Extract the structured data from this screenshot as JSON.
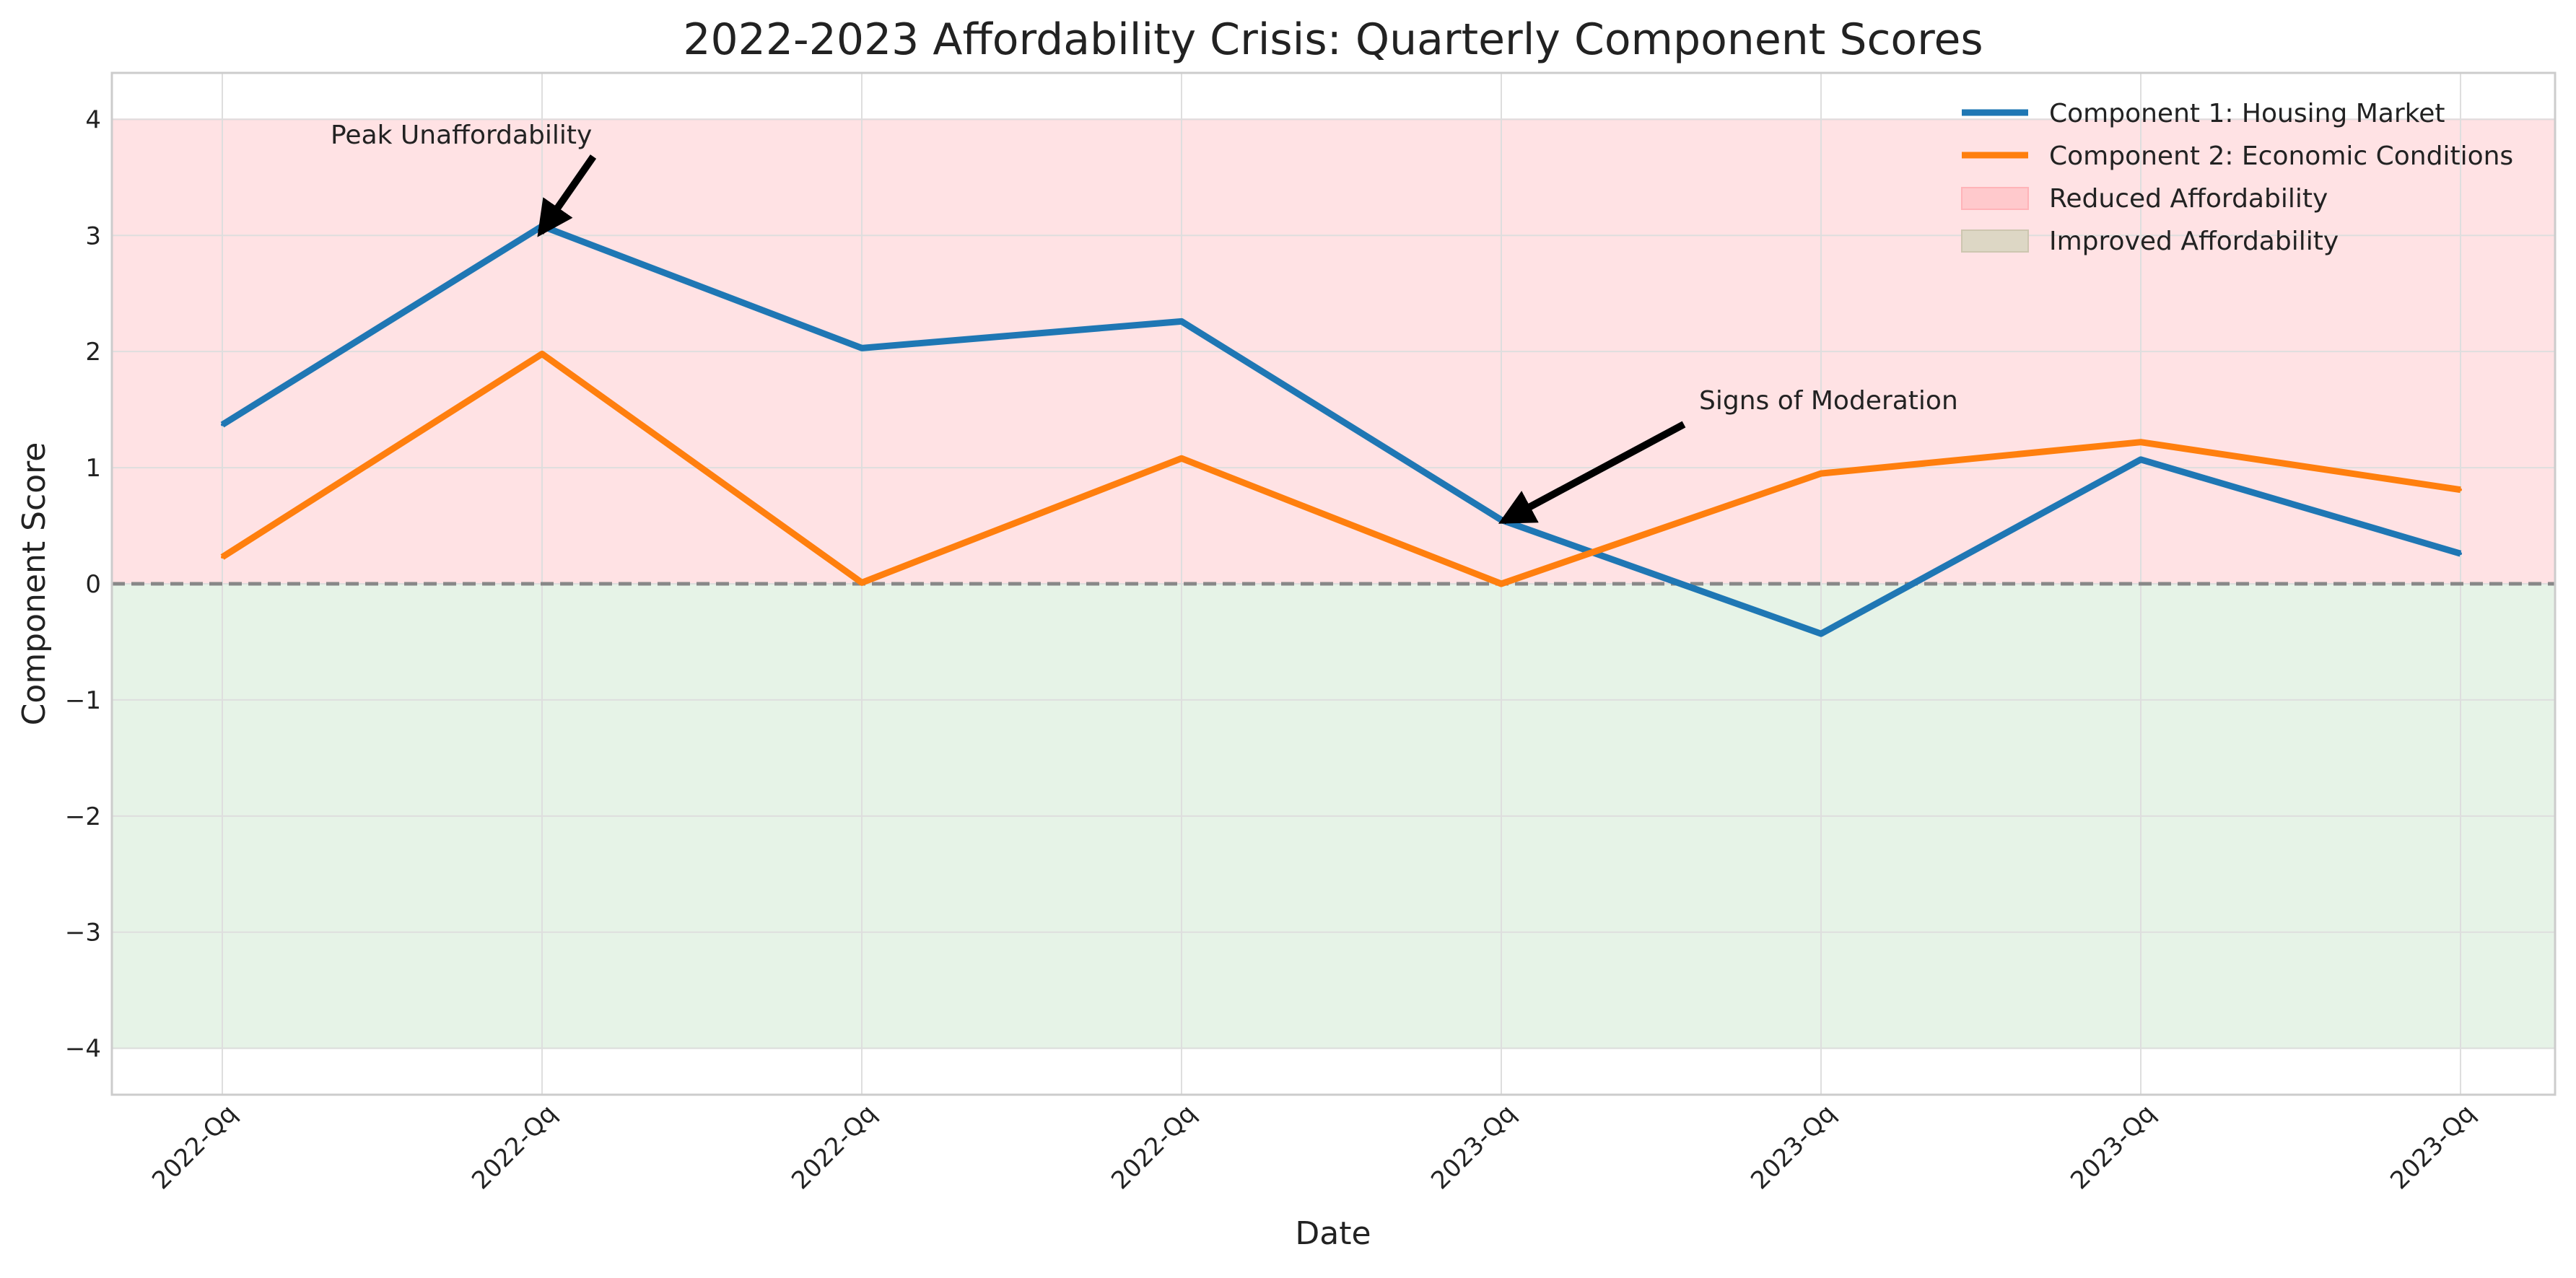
{
  "chart_data": {
    "type": "line",
    "title": "2022-2023 Affordability Crisis: Quarterly Component Scores",
    "xlabel": "Date",
    "ylabel": "Component Score",
    "categories": [
      "2022-Qq",
      "2022-Qq",
      "2022-Qq",
      "2022-Qq",
      "2023-Qq",
      "2023-Qq",
      "2023-Qq",
      "2023-Qq"
    ],
    "ylim": [
      -4.4,
      4.4
    ],
    "yticks": [
      4,
      3,
      2,
      1,
      0,
      -1,
      -2,
      -3,
      -4
    ],
    "ytick_labels": [
      "4",
      "3",
      "2",
      "1",
      "0",
      "−1",
      "−2",
      "−3",
      "−4"
    ],
    "grid": true,
    "legend_position": "top-right",
    "series": [
      {
        "name": "Component 1: Housing Market",
        "color": "#1f77b4",
        "values": [
          1.37,
          3.08,
          2.03,
          2.26,
          0.55,
          -0.43,
          1.07,
          0.26
        ]
      },
      {
        "name": "Component 2: Economic Conditions",
        "color": "#ff7f0e",
        "values": [
          0.23,
          1.98,
          0.01,
          1.08,
          0.0,
          0.95,
          1.22,
          0.81
        ]
      }
    ],
    "regions": [
      {
        "name": "Reduced Affordability",
        "from": 0,
        "to": 4,
        "color": "#ffb3b8"
      },
      {
        "name": "Improved Affordability",
        "from": -4,
        "to": 0,
        "color": "#c3e2c6"
      }
    ],
    "reference_line": {
      "y": 0,
      "color": "#888888",
      "style": "dashed"
    },
    "annotations": [
      {
        "text": "Peak Unaffordability",
        "point": {
          "x_index": 1,
          "y": 3.08
        },
        "text_anchor": {
          "x_index": 0.7,
          "y": 3.8
        }
      },
      {
        "text": "Signs of Moderation",
        "point": {
          "x_index": 4,
          "y": 0.55
        },
        "text_anchor": {
          "x_index": 4.65,
          "y": 1.5
        }
      }
    ]
  }
}
